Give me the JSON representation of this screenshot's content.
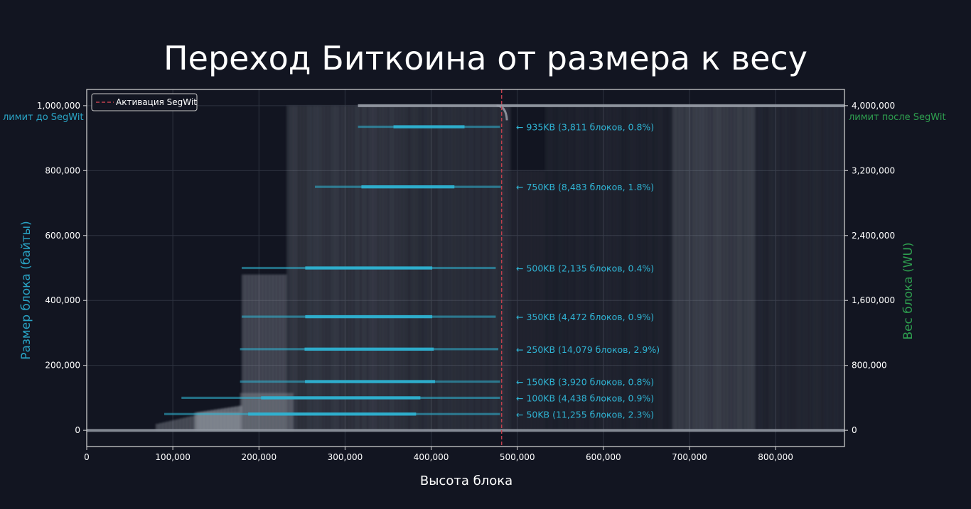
{
  "chart_data": {
    "type": "scatter",
    "title": "Переход Биткоина от размера к весу",
    "xlabel": "Высота блока",
    "ylabel_left": "Размер блока (байты)",
    "ylabel_right": "Вес блока (WU)",
    "xlim": [
      0,
      880000
    ],
    "ylim_left": [
      -50000,
      1050000
    ],
    "ylim_right": [
      -200000,
      4200000
    ],
    "x_ticks": [
      0,
      100000,
      200000,
      300000,
      400000,
      500000,
      600000,
      700000,
      800000
    ],
    "x_tick_labels": [
      "0",
      "100,000",
      "200,000",
      "300,000",
      "400,000",
      "500,000",
      "600,000",
      "700,000",
      "800,000"
    ],
    "y_left_ticks": [
      0,
      200000,
      400000,
      600000,
      800000,
      1000000
    ],
    "y_left_tick_labels": [
      "0",
      "200,000",
      "400,000",
      "600,000",
      "800,000",
      "1,000,000"
    ],
    "y_right_ticks": [
      0,
      800000,
      1600000,
      2400000,
      3200000,
      4000000
    ],
    "y_right_tick_labels": [
      "0",
      "800,000",
      "1,600,000",
      "2,400,000",
      "3,200,000",
      "4,000,000"
    ],
    "grid": true,
    "legend": {
      "placement": "top-left",
      "entries": [
        "Активация SegWit"
      ]
    },
    "segwit_activation_height": 481824,
    "limit_lines": [
      {
        "label": "лимит до SegWit",
        "axis": "left",
        "value": 1000000
      },
      {
        "label": "лимит после SegWit",
        "axis": "right",
        "value": 4000000
      }
    ],
    "clusters": [
      {
        "size_bytes": 935000,
        "x_start": 315000,
        "x_end": 480000,
        "annotation": "← 935KB (3,811 блоков, 0.8%)"
      },
      {
        "size_bytes": 750000,
        "x_start": 265000,
        "x_end": 481000,
        "annotation": "← 750KB (8,483 блоков, 1.8%)"
      },
      {
        "size_bytes": 500000,
        "x_start": 180000,
        "x_end": 475000,
        "annotation": "← 500KB (2,135 блоков, 0.4%)"
      },
      {
        "size_bytes": 350000,
        "x_start": 180000,
        "x_end": 475000,
        "annotation": "← 350KB (4,472 блоков, 0.9%)"
      },
      {
        "size_bytes": 250000,
        "x_start": 178000,
        "x_end": 478000,
        "annotation": "← 250KB (14,079 блоков, 2.9%)"
      },
      {
        "size_bytes": 150000,
        "x_start": 178000,
        "x_end": 480000,
        "annotation": "← 150KB (3,920 блоков, 0.8%)"
      },
      {
        "size_bytes": 100000,
        "x_start": 110000,
        "x_end": 480000,
        "annotation": "← 100KB (4,438 блоков, 0.9%)"
      },
      {
        "size_bytes": 50000,
        "x_start": 90000,
        "x_end": 480000,
        "annotation": "← 50KB (11,255 блоков, 2.3%)"
      }
    ],
    "colors": {
      "background": "#121521",
      "text": "#ffffff",
      "left_axis": "#29a3c4",
      "right_axis": "#2e9e4f",
      "cluster": "#2fb4d4",
      "segwit_line": "#c0404d",
      "points": "#9aa0aa",
      "grid": "#2e3340"
    }
  }
}
